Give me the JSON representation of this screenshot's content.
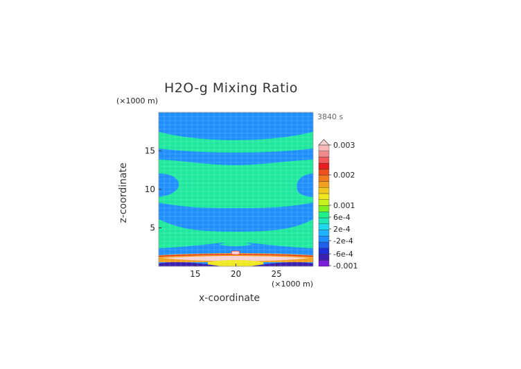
{
  "chart_data": {
    "type": "heatmap",
    "title": "H2O-g Mixing Ratio",
    "time_label": "3840 s",
    "xlabel": "x-coordinate",
    "ylabel": "z-coordinate",
    "x_multiplier": "(×1000 m)",
    "y_multiplier": "(×1000 m)",
    "xlim": [
      10.5,
      29.5
    ],
    "ylim": [
      0,
      20
    ],
    "x_ticks": [
      15,
      20,
      25
    ],
    "y_ticks": [
      5,
      10,
      15
    ],
    "grid": true,
    "colorbar": {
      "placement": "right",
      "labels": [
        "0.003",
        "0.002",
        "0.001",
        "6e-4",
        "2e-4",
        "-2e-4",
        "-6e-4",
        "-0.001"
      ],
      "levels": [
        "#7c1fd8",
        "#3b1fb0",
        "#1f2fd8",
        "#1f5ff0",
        "#1f8fff",
        "#1fb3ff",
        "#1fd7ee",
        "#1fe8b8",
        "#1ff08c",
        "#7ff01f",
        "#c8f01f",
        "#f0e81f",
        "#f0c81f",
        "#f0a01f",
        "#f07a1f",
        "#f0501f",
        "#e81f1f",
        "#f05a5a",
        "#f08a8a",
        "#f8b8b8"
      ],
      "colors": {
        "background_level": "#1f8fff",
        "mid_level": "#1fe89e",
        "surface_hot": "#f0a01f",
        "surface_peak": "#f8d0d0"
      }
    }
  }
}
